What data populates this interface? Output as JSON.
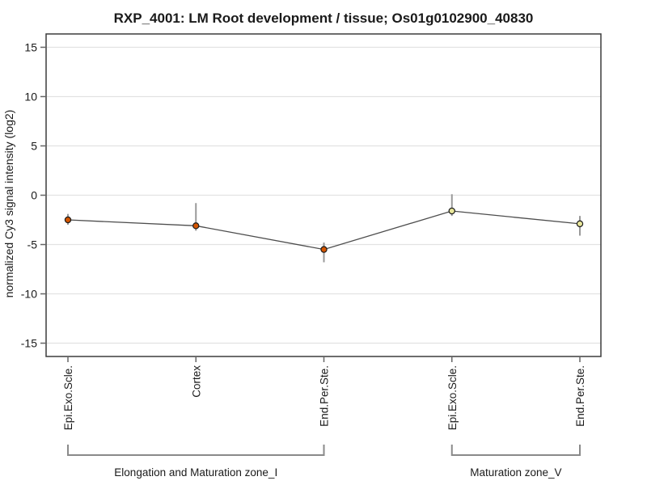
{
  "chart_data": {
    "type": "line",
    "title": "RXP_4001: LM Root development / tissue; Os01g0102900_40830",
    "ylabel": "normalized Cy3 signal intensity (log2)",
    "xlabel": "",
    "ylim": [
      -16.35,
      16.35
    ],
    "yticks": [
      15,
      10,
      5,
      0,
      -5,
      -10,
      -15
    ],
    "grid": true,
    "legend": "none",
    "points": [
      {
        "category": "Epi.Exo.Scle.",
        "group": "Elongation and Maturation zone_I",
        "value": -2.5,
        "err_high": -1.9,
        "err_low": -3.0
      },
      {
        "category": "Cortex",
        "group": "Elongation and Maturation zone_I",
        "value": -3.1,
        "err_high": -0.8,
        "err_low": -3.6
      },
      {
        "category": "End.Per.Ste.",
        "group": "Elongation and Maturation zone_I",
        "value": -5.5,
        "err_high": -4.8,
        "err_low": -6.8
      },
      {
        "category": "Epi.Exo.Scle.",
        "group": "Maturation zone_V",
        "value": -1.6,
        "err_high": 0.1,
        "err_low": -2.1
      },
      {
        "category": "End.Per.Ste.",
        "group": "Maturation zone_V",
        "value": -2.9,
        "err_high": -2.1,
        "err_low": -4.1
      }
    ],
    "groups": [
      {
        "label": "Elongation and Maturation zone_I",
        "start": 0,
        "end": 2,
        "marker_color": "#d45500"
      },
      {
        "label": "Maturation zone_V",
        "start": 3,
        "end": 4,
        "marker_color": "#e9e79b"
      }
    ],
    "colors": {
      "marker_zone_I": "#d45500",
      "marker_zone_V": "#e9e79b",
      "marker_outline": "#1a1a1a",
      "series_line": "#4d4d4d",
      "error_bar": "#999999",
      "gridline": "#e2e2e2",
      "frame": "#3c3c3c",
      "tick": "#666666",
      "bracket": "#8a8a8a",
      "background": "#ffffff"
    }
  }
}
